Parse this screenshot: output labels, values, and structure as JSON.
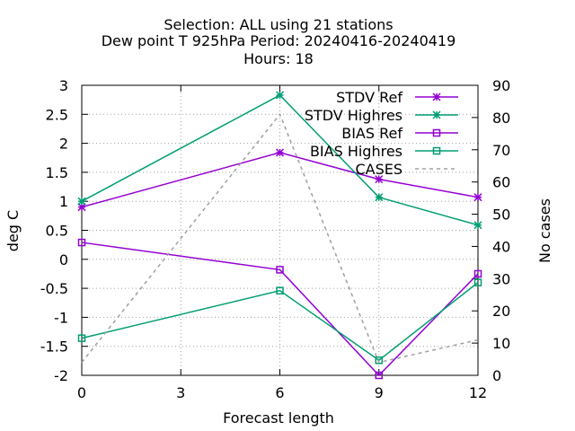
{
  "title": {
    "line1": "Selection: ALL using    21 stations",
    "line2": "Dew point T 925hPa   Period: 20240416-20240419",
    "line3": "Hours:  18"
  },
  "chart_data": {
    "type": "line",
    "xlabel": "Forecast length",
    "ylabel": "deg C",
    "y2label": "No cases",
    "x": [
      0,
      6,
      9,
      12
    ],
    "xticks": [
      0,
      3,
      6,
      9,
      12
    ],
    "xlim": [
      0,
      12
    ],
    "ylim": [
      -2,
      3
    ],
    "yticks": [
      -2,
      -1.5,
      -1,
      -0.5,
      0,
      0.5,
      1,
      1.5,
      2,
      2.5,
      3
    ],
    "y2lim": [
      0,
      90
    ],
    "y2ticks": [
      0,
      10,
      20,
      30,
      40,
      50,
      60,
      70,
      80,
      90
    ],
    "grid": true,
    "legend_position": "top-right",
    "series": [
      {
        "name": "STDV Ref",
        "axis": "y1",
        "marker": "x-star",
        "style": "solid",
        "color": "#9400d3",
        "values": [
          0.9,
          1.84,
          1.38,
          1.07
        ]
      },
      {
        "name": "STDV Highres",
        "axis": "y1",
        "marker": "x-star",
        "style": "solid",
        "color": "#009e73",
        "values": [
          1.0,
          2.83,
          1.07,
          0.59
        ]
      },
      {
        "name": "BIAS Ref",
        "axis": "y1",
        "marker": "square",
        "style": "solid",
        "color": "#9400d3",
        "values": [
          0.29,
          -0.18,
          -2.0,
          -0.25
        ]
      },
      {
        "name": "BIAS Highres",
        "axis": "y1",
        "marker": "square",
        "style": "solid",
        "color": "#009e73",
        "values": [
          -1.36,
          -0.54,
          -1.74,
          -0.4
        ]
      },
      {
        "name": "CASES",
        "axis": "y2",
        "marker": "none",
        "style": "dashed",
        "color": "#a0a0a0",
        "values": [
          4,
          81,
          4,
          11
        ]
      }
    ]
  }
}
